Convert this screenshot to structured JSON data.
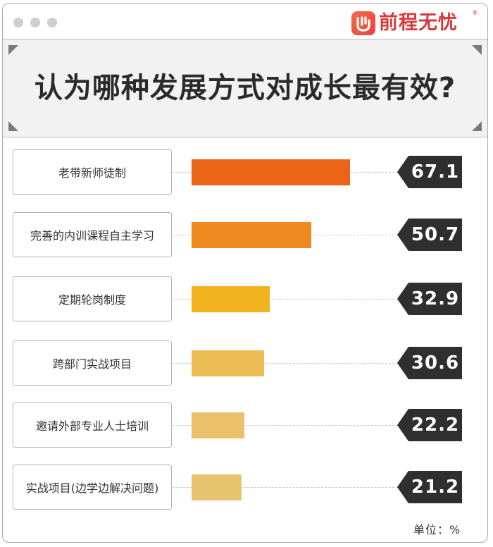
{
  "brand": {
    "name": "前程无忧",
    "mark": "®"
  },
  "title": "认为哪种发展方式对成长最有效?",
  "unit_label": "单位：%",
  "colors": {
    "brand": "#d8393a",
    "tag_bg": "#2f2f2f",
    "frame": "#a9a9a9"
  },
  "chart_data": {
    "type": "bar",
    "orientation": "horizontal",
    "title": "认为哪种发展方式对成长最有效?",
    "unit": "%",
    "xlim": [
      0,
      100
    ],
    "grid": false,
    "categories": [
      "老带新师徒制",
      "完善的内训课程自主学习",
      "定期轮岗制度",
      "跨部门实战项目",
      "邀请外部专业人士培训",
      "实战项目(边学边解决问题)"
    ],
    "values": [
      67.1,
      50.7,
      32.9,
      30.6,
      22.2,
      21.2
    ],
    "value_labels": [
      "67.1",
      "50.7",
      "32.9",
      "30.6",
      "22.2",
      "21.2"
    ],
    "bar_colors": [
      "#ea6518",
      "#ee8a1f",
      "#f2b21f",
      "#ecbc55",
      "#eac06b",
      "#e9c470"
    ]
  }
}
